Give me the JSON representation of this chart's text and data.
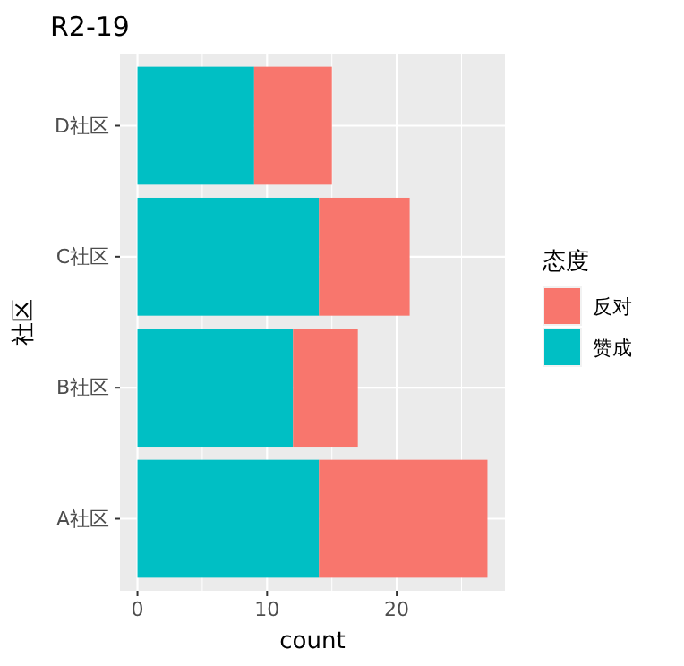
{
  "chart_data": {
    "type": "bar",
    "orientation": "horizontal",
    "stacked": true,
    "title": "R2-19",
    "xlabel": "count",
    "ylabel": "社区",
    "legend_title": "态度",
    "legend": "right",
    "grid": true,
    "categories": [
      "D社区",
      "C社区",
      "B社区",
      "A社区"
    ],
    "series": [
      {
        "name": "赞成",
        "color": "#00bfc4",
        "values": [
          9,
          14,
          12,
          14
        ]
      },
      {
        "name": "反对",
        "color": "#f8766d",
        "values": [
          6,
          7,
          5,
          13
        ]
      }
    ],
    "xlim": [
      -1.35,
      28.35
    ],
    "xticks": [
      0,
      10,
      20
    ]
  }
}
